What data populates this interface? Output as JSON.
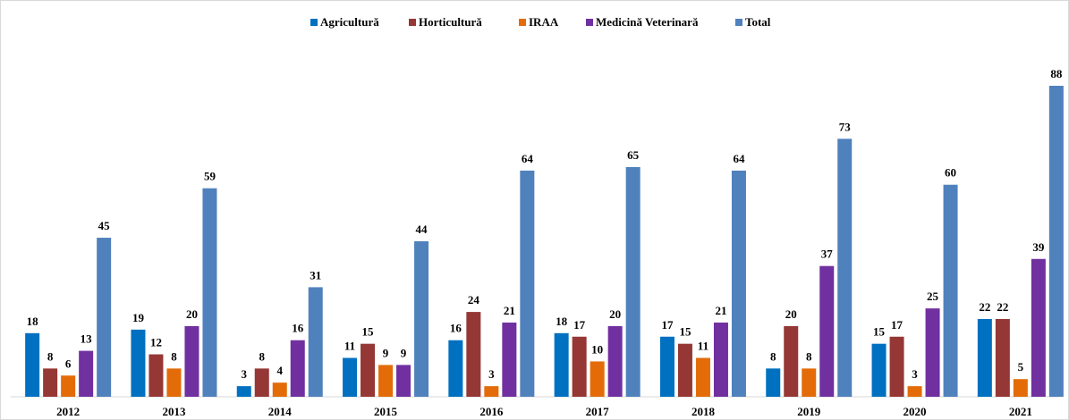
{
  "chart_data": {
    "type": "bar",
    "categories": [
      "2012",
      "2013",
      "2014",
      "2015",
      "2016",
      "2017",
      "2018",
      "2019",
      "2020",
      "2021"
    ],
    "series": [
      {
        "name": "Agricultură",
        "color": "#0070c0",
        "values": [
          18,
          19,
          3,
          11,
          16,
          18,
          17,
          8,
          15,
          22
        ]
      },
      {
        "name": "Horticultură",
        "color": "#953735",
        "values": [
          8,
          12,
          8,
          15,
          24,
          17,
          15,
          20,
          17,
          22
        ]
      },
      {
        "name": "IRAA",
        "color": "#e36c09",
        "values": [
          6,
          8,
          4,
          9,
          3,
          10,
          11,
          8,
          3,
          5
        ]
      },
      {
        "name": "Medicină Veterinară",
        "color": "#7030a0",
        "values": [
          13,
          20,
          16,
          9,
          21,
          20,
          21,
          37,
          25,
          39
        ]
      },
      {
        "name": "Total",
        "color": "#4f81bd",
        "values": [
          45,
          59,
          31,
          44,
          64,
          65,
          64,
          73,
          60,
          88
        ]
      }
    ],
    "legend": "top"
  }
}
